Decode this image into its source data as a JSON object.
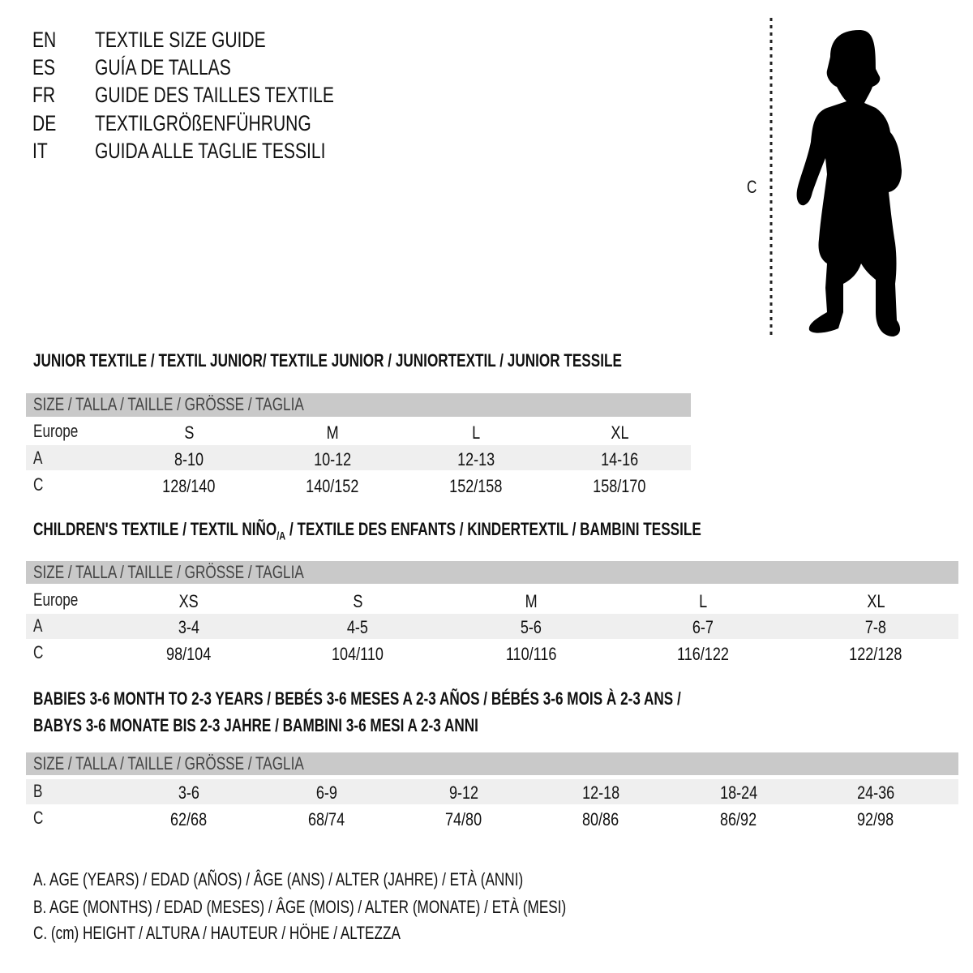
{
  "title_lines": [
    {
      "code": "EN",
      "text": "TEXTILE SIZE GUIDE"
    },
    {
      "code": "ES",
      "text": "GUÍA DE TALLAS"
    },
    {
      "code": "FR",
      "text": "GUIDE DES TAILLES TEXTILE"
    },
    {
      "code": "DE",
      "text": "TEXTILGRÖßENFÜHRUNG"
    },
    {
      "code": "IT",
      "text": "GUIDA ALLE TAGLIE TESSILI"
    }
  ],
  "figure": {
    "measure_label": "C",
    "icon": "child-silhouette-icon"
  },
  "size_header": "SIZE / TALLA / TAILLE / GRÖSSE / TAGLIA",
  "junior": {
    "heading": "JUNIOR TEXTILE / TEXTIL JUNIOR/ TEXTILE JUNIOR / JUNIORTEXTIL / JUNIOR TESSILE",
    "rows": [
      {
        "label": "Europe",
        "values": [
          "S",
          "M",
          "L",
          "XL"
        ]
      },
      {
        "label": "A",
        "values": [
          "8-10",
          "10-12",
          "12-13",
          "14-16"
        ]
      },
      {
        "label": "C",
        "values": [
          "128/140",
          "140/152",
          "152/158",
          "158/170"
        ]
      }
    ]
  },
  "children": {
    "heading": "CHILDREN'S TEXTILE / TEXTIL NIÑO",
    "heading_sub": "/A",
    "heading_rest": " / TEXTILE DES ENFANTS / KINDERTEXTIL / BAMBINI TESSILE",
    "rows": [
      {
        "label": "Europe",
        "values": [
          "XS",
          "S",
          "M",
          "L",
          "XL"
        ]
      },
      {
        "label": "A",
        "values": [
          "3-4",
          "4-5",
          "5-6",
          "6-7",
          "7-8"
        ]
      },
      {
        "label": "C",
        "values": [
          "98/104",
          "104/110",
          "110/116",
          "116/122",
          "122/128"
        ]
      }
    ]
  },
  "babies": {
    "heading_1": "BABIES 3-6 MONTH TO 2-3 YEARS / BEBÉS 3-6 MESES A 2-3 AÑOS / BÉBÉS 3-6 MOIS À 2-3 ANS /",
    "heading_2": "BABYS 3-6 MONATE BIS 2-3 JAHRE / BAMBINI 3-6 MESI A 2-3 ANNI",
    "rows": [
      {
        "label": "B",
        "values": [
          "3-6",
          "6-9",
          "9-12",
          "12-18",
          "18-24",
          "24-36"
        ]
      },
      {
        "label": "C",
        "values": [
          "62/68",
          "68/74",
          "74/80",
          "80/86",
          "86/92",
          "92/98"
        ]
      }
    ]
  },
  "legend": [
    "A. AGE (YEARS) / EDAD (AÑOS) / ÂGE (ANS) / ALTER (JAHRE) / ETÀ (ANNI)",
    "B. AGE (MONTHS) / EDAD (MESES) / ÂGE (MOIS) / ALTER (MONATE) / ETÀ (MESI)",
    "C. (cm) HEIGHT / ALTURA / HAUTEUR / HÖHE / ALTEZZA"
  ],
  "colors": {
    "header_bar": "#c9c9c9",
    "row_shade": "#efefef",
    "text": "#111111"
  }
}
